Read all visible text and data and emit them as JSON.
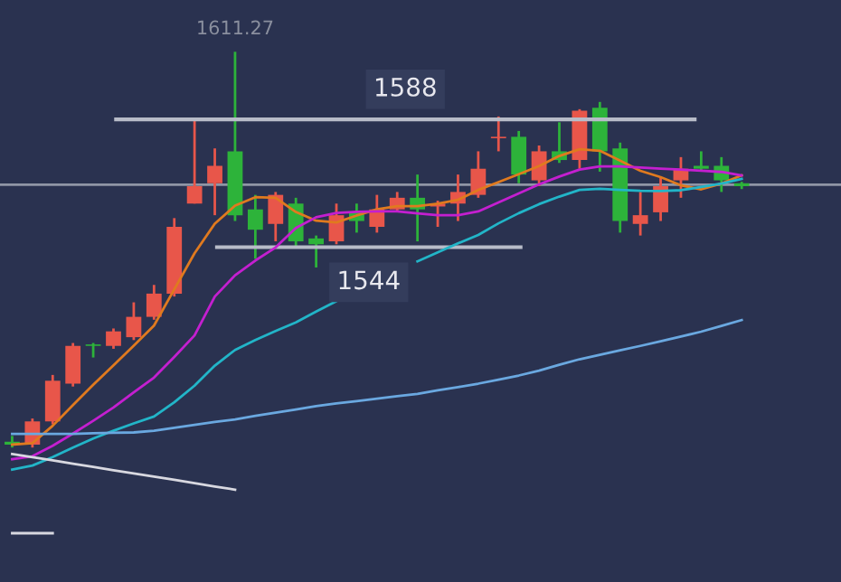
{
  "chart_data": {
    "type": "candlestick",
    "categories": [
      null,
      null,
      null,
      null,
      null,
      null,
      null,
      null,
      null,
      null,
      null,
      null,
      null,
      null,
      null,
      null,
      null,
      null,
      null,
      null,
      null,
      null,
      null,
      null,
      null,
      null,
      null,
      null,
      null,
      null,
      null,
      null,
      null,
      null,
      null,
      null,
      null
    ],
    "ohlc": [
      [
        1477,
        1479,
        1475,
        1476
      ],
      [
        1476,
        1485,
        1475,
        1484
      ],
      [
        1484,
        1500,
        1483,
        1498
      ],
      [
        1497,
        1511,
        1496,
        1510
      ],
      [
        1510.5,
        1511,
        1506,
        1510
      ],
      [
        1510,
        1516,
        1509,
        1515
      ],
      [
        1513,
        1525,
        1512,
        1520
      ],
      [
        1520,
        1531,
        1519,
        1528
      ],
      [
        1528,
        1554,
        1527,
        1551
      ],
      [
        1559,
        1588.6,
        1559,
        1565
      ],
      [
        1566,
        1578,
        1555,
        1572
      ],
      [
        1577,
        1611.27,
        1553,
        1555
      ],
      [
        1557,
        1562,
        1540,
        1550
      ],
      [
        1552,
        1563,
        1546,
        1562
      ],
      [
        1559,
        1561,
        1544,
        1546
      ],
      [
        1547,
        1548,
        1537,
        1545
      ],
      [
        1546,
        1559,
        1545,
        1555
      ],
      [
        1556,
        1559,
        1549,
        1553
      ],
      [
        1551,
        1562,
        1549,
        1557
      ],
      [
        1557,
        1563,
        1556,
        1561
      ],
      [
        1561,
        1569,
        1546,
        1557
      ],
      [
        1558,
        1560,
        1551,
        1559
      ],
      [
        1559,
        1569,
        1553,
        1563
      ],
      [
        1562,
        1577,
        1561,
        1571
      ],
      [
        1581.5,
        1589,
        1577,
        1582
      ],
      [
        1582,
        1584,
        1566,
        1569
      ],
      [
        1567,
        1579,
        1565,
        1577
      ],
      [
        1577,
        1587,
        1573,
        1574
      ],
      [
        1574,
        1591.5,
        1571,
        1591
      ],
      [
        1592,
        1594,
        1570,
        1577
      ],
      [
        1578,
        1580,
        1549,
        1553
      ],
      [
        1552,
        1563,
        1548,
        1555
      ],
      [
        1556,
        1568,
        1553,
        1565
      ],
      [
        1567,
        1575,
        1561,
        1571
      ],
      [
        1572,
        1577,
        1570,
        1571
      ],
      [
        1572,
        1575,
        1563,
        1567
      ],
      [
        1566,
        1566.5,
        1564,
        1565
      ]
    ],
    "colors": [
      "#2db33a",
      "#e8564a",
      "#e8564a",
      "#e8564a",
      "#2db33a",
      "#e8564a",
      "#e8564a",
      "#e8564a",
      "#e8564a",
      "#e8564a",
      "#e8564a",
      "#2db33a",
      "#2db33a",
      "#e8564a",
      "#2db33a",
      "#2db33a",
      "#e8564a",
      "#2db33a",
      "#e8564a",
      "#e8564a",
      "#2db33a",
      "#e8564a",
      "#e8564a",
      "#e8564a",
      "#e8564a",
      "#2db33a",
      "#e8564a",
      "#2db33a",
      "#e8564a",
      "#2db33a",
      "#2db33a",
      "#e8564a",
      "#e8564a",
      "#e8564a",
      "#2db33a",
      "#2db33a",
      "#2db33a"
    ],
    "series": [
      {
        "type": "line",
        "color": "#e07a1f",
        "values": [
          1476,
          1476.5,
          1482.5,
          1489.6,
          1496.6,
          1503.3,
          1510.1,
          1517.0,
          1529.5,
          1541.9,
          1552.1,
          1558.3,
          1561.2,
          1561.0,
          1556.1,
          1553.1,
          1552.5,
          1554.9,
          1557.0,
          1558.1,
          1558.1,
          1559.0,
          1560.3,
          1563.7,
          1566.4,
          1569.1,
          1571.9,
          1575.4,
          1577.7,
          1577.2,
          1573.8,
          1570.3,
          1568.1,
          1565.3,
          1563.9,
          1565.9,
          1568.7
        ]
      },
      {
        "type": "line",
        "color": "#c41fd0",
        "values": [
          1471.0,
          1472.0,
          1475.6,
          1479.8,
          1484.2,
          1488.8,
          1494.0,
          1499.1,
          1506.2,
          1513.6,
          1527.0,
          1534.3,
          1539.4,
          1543.9,
          1550.6,
          1554.3,
          1555.8,
          1556.2,
          1556.3,
          1556.3,
          1555.6,
          1555.0,
          1555.0,
          1556.3,
          1559.4,
          1562.5,
          1565.6,
          1568.3,
          1570.7,
          1571.8,
          1571.8,
          1571.4,
          1571.0,
          1570.7,
          1570.3,
          1569.9,
          1568.7
        ]
      },
      {
        "type": "line",
        "color": "#22b5c8",
        "values": [
          1467.4,
          1468.8,
          1471.7,
          1475.0,
          1478.1,
          1480.8,
          1483.3,
          1485.7,
          1490.6,
          1496.3,
          1503.2,
          1508.6,
          1512.0,
          1515.1,
          1518.1,
          1521.8,
          1525.4,
          null,
          null,
          null,
          1539.1,
          1542.2,
          1545.3,
          1548.2,
          1552.2,
          1555.7,
          1558.8,
          1561.4,
          1563.7,
          1564.1,
          1563.7,
          1563.4,
          1563.3,
          1563.6,
          1564.7,
          1565.9,
          1567.5
        ]
      },
      {
        "type": "line",
        "color": "#6aa8e0",
        "values": [
          1479.7,
          1479.7,
          1479.7,
          1479.7,
          1479.9,
          1480.1,
          1480.2,
          1480.8,
          1481.8,
          1482.8,
          1483.8,
          1484.7,
          1485.9,
          1487.0,
          1488.1,
          1489.3,
          1490.2,
          1491.0,
          1491.8,
          1492.7,
          1493.5,
          1494.7,
          1495.8,
          1497.0,
          1498.4,
          1499.8,
          1501.5,
          1503.5,
          1505.4,
          1506.9,
          1508.5,
          1510.0,
          1511.6,
          1513.2,
          1514.9,
          1516.9,
          1518.9
        ]
      },
      {
        "type": "line",
        "color": "#d8d8e0",
        "values": [
          1472.8,
          1471.7,
          1470.6,
          1469.4,
          1468.3,
          1467.2,
          1466.1,
          1465.0,
          1463.9,
          1462.7,
          1461.6,
          1460.5,
          null,
          null,
          null,
          null,
          null,
          null,
          null,
          null,
          null,
          null,
          null,
          null,
          null,
          null,
          null,
          null,
          null,
          null,
          null,
          null,
          null,
          null,
          null,
          null,
          null
        ]
      },
      {
        "type": "line",
        "color": "#d8d8e0",
        "values": [
          1445.5,
          1445.5,
          1445.5,
          null,
          null,
          null,
          null,
          null,
          null,
          null,
          null,
          null,
          null,
          null,
          null,
          null,
          null,
          null,
          null,
          null,
          null,
          null,
          null,
          null,
          null,
          null,
          null,
          null,
          null,
          null,
          null,
          null,
          null,
          null,
          null,
          null,
          null
        ]
      }
    ],
    "ref_lines": [
      {
        "axis": "y",
        "value": 1588,
        "label": "1588",
        "color": "#b8bcc8"
      },
      {
        "axis": "y",
        "value": 1544,
        "label": "1544",
        "color": "#b8bcc8"
      },
      {
        "axis": "y",
        "value": 1565.5,
        "color": "#9096a6"
      }
    ],
    "annotations": [
      {
        "text": "1611.27",
        "y": 1611.27
      }
    ],
    "ylim": [
      1428.7,
      1629.1
    ],
    "legend": false
  }
}
